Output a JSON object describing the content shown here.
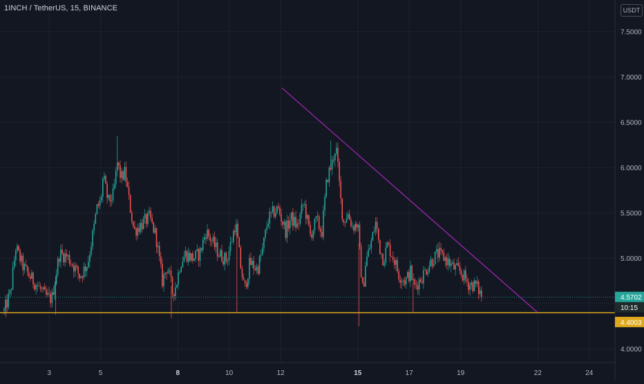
{
  "header": {
    "symbol_title": "1INCH / TetherUS, 15, BINANCE",
    "currency": "USDT"
  },
  "price_scale": {
    "ticks": [
      "7.5000",
      "7.0000",
      "6.5000",
      "6.0000",
      "5.5000",
      "5.0000",
      "4.5000",
      "4.0000"
    ],
    "current_price": "4.5702",
    "countdown": "10:15",
    "support_price": "4.4003"
  },
  "time_axis": {
    "ticks": [
      {
        "label": "3",
        "bold": false
      },
      {
        "label": "5",
        "bold": false
      },
      {
        "label": "8",
        "bold": true
      },
      {
        "label": "10",
        "bold": false
      },
      {
        "label": "12",
        "bold": false
      },
      {
        "label": "15",
        "bold": true
      },
      {
        "label": "17",
        "bold": false
      },
      {
        "label": "19",
        "bold": false
      },
      {
        "label": "22",
        "bold": false
      },
      {
        "label": "24",
        "bold": false
      }
    ]
  },
  "colors": {
    "background": "#131722",
    "up": "#26a69a",
    "down": "#ef5350",
    "support_line": "#e0a91c",
    "trend_line": "#9c27b0",
    "current_price_label": "#26a69a",
    "axis_text": "#b2b5be"
  },
  "chart_data": {
    "type": "candlestick",
    "title": "1INCH / TetherUS, 15, BINANCE",
    "ylim": [
      3.85,
      7.85
    ],
    "ytick_values": [
      7.5,
      7.0,
      6.5,
      6.0,
      5.5,
      5.0,
      4.5,
      4.0
    ],
    "xlim": [
      1.25,
      25.0
    ],
    "xtick_values": [
      3,
      5,
      8,
      10,
      12,
      15,
      17,
      19,
      22,
      24
    ],
    "last_price": 4.5702,
    "support_level": 4.4003,
    "trend_line": {
      "x": [
        12.05,
        21.96
      ],
      "y": [
        6.88,
        4.41
      ]
    },
    "price_path": {
      "x": [
        1.25,
        1.5,
        1.7,
        2.0,
        2.3,
        2.6,
        2.85,
        3.1,
        3.4,
        3.7,
        3.95,
        4.2,
        4.5,
        4.75,
        4.85,
        5.0,
        5.1,
        5.3,
        5.5,
        5.65,
        5.8,
        5.95,
        6.1,
        6.3,
        6.6,
        6.9,
        7.15,
        7.4,
        7.6,
        7.8,
        7.95,
        8.1,
        8.3,
        8.6,
        8.85,
        9.1,
        9.3,
        9.6,
        9.9,
        10.1,
        10.25,
        10.45,
        10.6,
        10.8,
        11.1,
        11.3,
        11.5,
        11.7,
        11.9,
        12.2,
        12.4,
        12.65,
        12.9,
        13.15,
        13.4,
        13.6,
        13.8,
        14.0,
        14.15,
        14.35,
        14.45,
        14.6,
        14.8,
        15.0,
        15.1,
        15.2,
        15.3,
        15.5,
        15.7,
        15.85,
        16.0,
        16.15,
        16.4,
        16.6,
        16.85,
        17.05,
        17.2,
        17.5,
        17.8,
        18.1,
        18.4,
        18.7,
        19.0,
        19.3,
        19.6,
        19.85
      ],
      "close": [
        4.42,
        4.62,
        5.12,
        4.9,
        4.78,
        4.68,
        4.58,
        4.55,
        5.05,
        5.02,
        4.92,
        4.8,
        4.95,
        5.35,
        5.55,
        5.62,
        5.9,
        5.62,
        5.7,
        6.05,
        5.88,
        5.95,
        5.65,
        5.3,
        5.38,
        5.45,
        5.25,
        4.75,
        4.92,
        4.62,
        4.72,
        4.95,
        5.05,
        5.0,
        5.05,
        5.3,
        5.2,
        5.05,
        4.98,
        5.2,
        5.4,
        4.9,
        4.65,
        4.95,
        4.88,
        5.1,
        5.42,
        5.5,
        5.55,
        5.3,
        5.45,
        5.35,
        5.62,
        5.25,
        5.42,
        5.28,
        5.88,
        6.05,
        6.25,
        5.6,
        5.4,
        5.5,
        5.35,
        5.38,
        4.95,
        4.62,
        4.95,
        5.15,
        5.4,
        5.12,
        4.98,
        5.15,
        5.0,
        4.82,
        4.75,
        4.85,
        4.68,
        4.8,
        4.95,
        5.05,
        5.0,
        4.9,
        4.85,
        4.72,
        4.7,
        4.57
      ]
    }
  }
}
